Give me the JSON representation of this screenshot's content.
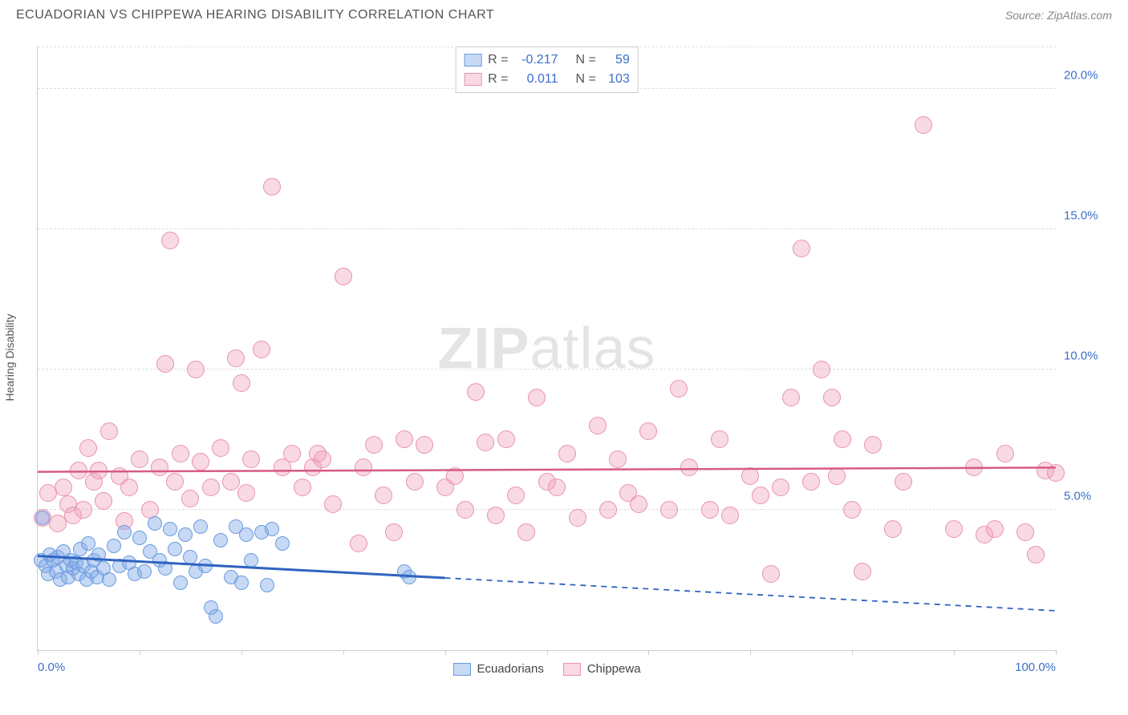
{
  "header": {
    "title": "ECUADORIAN VS CHIPPEWA HEARING DISABILITY CORRELATION CHART",
    "source": "Source: ZipAtlas.com"
  },
  "watermark": {
    "zip": "ZIP",
    "atlas": "atlas"
  },
  "chart": {
    "type": "scatter",
    "ylabel": "Hearing Disability",
    "xlim": [
      0,
      100
    ],
    "ylim": [
      0,
      21.5
    ],
    "xticks": [
      0,
      10,
      20,
      30,
      40,
      50,
      60,
      70,
      80,
      90,
      100
    ],
    "xtick_labels": {
      "0": "0.0%",
      "100": "100.0%"
    },
    "yticks": [
      5,
      10,
      15,
      20
    ],
    "ytick_labels": {
      "5": "5.0%",
      "10": "10.0%",
      "15": "15.0%",
      "20": "20.0%"
    },
    "grid_color": "#dddddd",
    "background_color": "#ffffff",
    "series": [
      {
        "name": "Ecuadorians",
        "color_fill": "rgba(130,170,230,0.45)",
        "color_stroke": "#6a9be0",
        "marker_radius": 9,
        "R_label": "R =",
        "R": "-0.217",
        "N_label": "N =",
        "N": "59",
        "trend": {
          "x1": 0,
          "y1": 3.35,
          "x2": 100,
          "y2": 1.4,
          "solid_until_x": 40,
          "color": "#2f64c0",
          "width": 3
        },
        "points": [
          [
            0.3,
            3.2
          ],
          [
            0.5,
            4.7
          ],
          [
            0.8,
            3.0
          ],
          [
            1.0,
            2.7
          ],
          [
            1.2,
            3.4
          ],
          [
            1.5,
            3.2
          ],
          [
            1.8,
            2.8
          ],
          [
            2.0,
            3.3
          ],
          [
            2.2,
            2.5
          ],
          [
            2.5,
            3.5
          ],
          [
            2.8,
            3.0
          ],
          [
            3.0,
            2.6
          ],
          [
            3.2,
            3.2
          ],
          [
            3.5,
            2.9
          ],
          [
            3.8,
            3.1
          ],
          [
            4.0,
            2.7
          ],
          [
            4.2,
            3.6
          ],
          [
            4.5,
            3.0
          ],
          [
            4.8,
            2.5
          ],
          [
            5.0,
            3.8
          ],
          [
            5.3,
            2.8
          ],
          [
            5.5,
            3.2
          ],
          [
            5.8,
            2.6
          ],
          [
            6.0,
            3.4
          ],
          [
            6.5,
            2.9
          ],
          [
            7.0,
            2.5
          ],
          [
            7.5,
            3.7
          ],
          [
            8.0,
            3.0
          ],
          [
            8.5,
            4.2
          ],
          [
            9.0,
            3.1
          ],
          [
            9.5,
            2.7
          ],
          [
            10.0,
            4.0
          ],
          [
            10.5,
            2.8
          ],
          [
            11.0,
            3.5
          ],
          [
            11.5,
            4.5
          ],
          [
            12.0,
            3.2
          ],
          [
            12.5,
            2.9
          ],
          [
            13.0,
            4.3
          ],
          [
            13.5,
            3.6
          ],
          [
            14.0,
            2.4
          ],
          [
            14.5,
            4.1
          ],
          [
            15.0,
            3.3
          ],
          [
            15.5,
            2.8
          ],
          [
            16.0,
            4.4
          ],
          [
            16.5,
            3.0
          ],
          [
            17.0,
            1.5
          ],
          [
            18.0,
            3.9
          ],
          [
            19.0,
            2.6
          ],
          [
            20.0,
            2.4
          ],
          [
            20.5,
            4.1
          ],
          [
            21.0,
            3.2
          ],
          [
            22.0,
            4.2
          ],
          [
            22.5,
            2.3
          ],
          [
            23.0,
            4.3
          ],
          [
            24.0,
            3.8
          ],
          [
            17.5,
            1.2
          ],
          [
            19.5,
            4.4
          ],
          [
            36.0,
            2.8
          ],
          [
            36.5,
            2.6
          ]
        ]
      },
      {
        "name": "Chippewa",
        "color_fill": "rgba(240,160,185,0.40)",
        "color_stroke": "#e892ae",
        "marker_radius": 11,
        "R_label": "R =",
        "R": "0.011",
        "N_label": "N =",
        "N": "103",
        "trend": {
          "x1": 0,
          "y1": 6.35,
          "x2": 100,
          "y2": 6.5,
          "solid_until_x": 100,
          "color": "#d65a88",
          "width": 2.5
        },
        "points": [
          [
            0.5,
            4.7
          ],
          [
            1.0,
            5.6
          ],
          [
            2.0,
            4.5
          ],
          [
            2.5,
            5.8
          ],
          [
            3.0,
            5.2
          ],
          [
            3.5,
            4.8
          ],
          [
            4.0,
            6.4
          ],
          [
            4.5,
            5.0
          ],
          [
            5.0,
            7.2
          ],
          [
            5.5,
            6.0
          ],
          [
            6.0,
            6.4
          ],
          [
            6.5,
            5.3
          ],
          [
            7.0,
            7.8
          ],
          [
            8.0,
            6.2
          ],
          [
            8.5,
            4.6
          ],
          [
            9.0,
            5.8
          ],
          [
            10.0,
            6.8
          ],
          [
            11.0,
            5.0
          ],
          [
            12.0,
            6.5
          ],
          [
            12.5,
            10.2
          ],
          [
            13.0,
            14.6
          ],
          [
            13.5,
            6.0
          ],
          [
            14.0,
            7.0
          ],
          [
            15.0,
            5.4
          ],
          [
            15.5,
            10.0
          ],
          [
            16.0,
            6.7
          ],
          [
            17.0,
            5.8
          ],
          [
            18.0,
            7.2
          ],
          [
            19.0,
            6.0
          ],
          [
            19.5,
            10.4
          ],
          [
            20.0,
            9.5
          ],
          [
            20.5,
            5.6
          ],
          [
            21.0,
            6.8
          ],
          [
            22.0,
            10.7
          ],
          [
            23.0,
            16.5
          ],
          [
            24.0,
            6.5
          ],
          [
            25.0,
            7.0
          ],
          [
            26.0,
            5.8
          ],
          [
            27.0,
            6.5
          ],
          [
            27.5,
            7.0
          ],
          [
            28.0,
            6.8
          ],
          [
            29.0,
            5.2
          ],
          [
            30.0,
            13.3
          ],
          [
            31.5,
            3.8
          ],
          [
            32.0,
            6.5
          ],
          [
            33.0,
            7.3
          ],
          [
            34.0,
            5.5
          ],
          [
            35.0,
            4.2
          ],
          [
            36.0,
            7.5
          ],
          [
            37.0,
            6.0
          ],
          [
            38.0,
            7.3
          ],
          [
            40.0,
            5.8
          ],
          [
            41.0,
            6.2
          ],
          [
            42.0,
            5.0
          ],
          [
            43.0,
            9.2
          ],
          [
            44.0,
            7.4
          ],
          [
            45.0,
            4.8
          ],
          [
            46.0,
            7.5
          ],
          [
            47.0,
            5.5
          ],
          [
            48.0,
            4.2
          ],
          [
            49.0,
            9.0
          ],
          [
            50.0,
            6.0
          ],
          [
            51.0,
            5.8
          ],
          [
            52.0,
            7.0
          ],
          [
            53.0,
            4.7
          ],
          [
            55.0,
            8.0
          ],
          [
            56.0,
            5.0
          ],
          [
            57.0,
            6.8
          ],
          [
            58.0,
            5.6
          ],
          [
            59.0,
            5.2
          ],
          [
            60.0,
            7.8
          ],
          [
            62.0,
            5.0
          ],
          [
            63.0,
            9.3
          ],
          [
            64.0,
            6.5
          ],
          [
            66.0,
            5.0
          ],
          [
            67.0,
            7.5
          ],
          [
            68.0,
            4.8
          ],
          [
            70.0,
            6.2
          ],
          [
            71.0,
            5.5
          ],
          [
            72.0,
            2.7
          ],
          [
            73.0,
            5.8
          ],
          [
            74.0,
            9.0
          ],
          [
            75.0,
            14.3
          ],
          [
            76.0,
            6.0
          ],
          [
            77.0,
            10.0
          ],
          [
            78.0,
            9.0
          ],
          [
            78.5,
            6.2
          ],
          [
            79.0,
            7.5
          ],
          [
            80.0,
            5.0
          ],
          [
            81.0,
            2.8
          ],
          [
            82.0,
            7.3
          ],
          [
            84.0,
            4.3
          ],
          [
            85.0,
            6.0
          ],
          [
            87.0,
            18.7
          ],
          [
            90.0,
            4.3
          ],
          [
            92.0,
            6.5
          ],
          [
            93.0,
            4.1
          ],
          [
            94.0,
            4.3
          ],
          [
            95.0,
            7.0
          ],
          [
            97.0,
            4.2
          ],
          [
            98.0,
            3.4
          ],
          [
            99.0,
            6.4
          ],
          [
            100.0,
            6.3
          ]
        ]
      }
    ],
    "legend_bottom": [
      {
        "label": "Ecuadorians"
      },
      {
        "label": "Chippewa"
      }
    ]
  }
}
